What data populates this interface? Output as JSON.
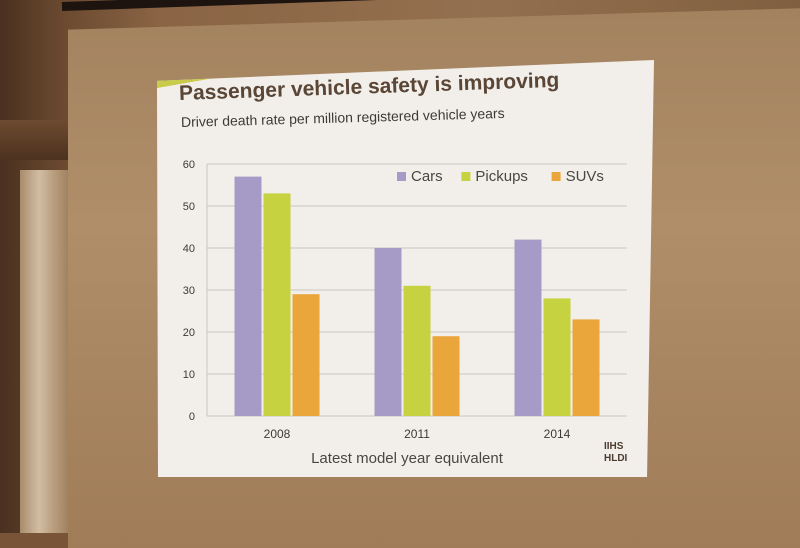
{
  "slide": {
    "title": "Passenger vehicle safety is improving",
    "subtitle": "Driver death rate per million registered vehicle years",
    "logo_text": "IIHS HLDI"
  },
  "colors": {
    "cars": "#a59bc6",
    "pickups": "#c6d23f",
    "suvs": "#eaa63a",
    "grid": "#c9c6c0",
    "axis_text": "#3c3a38"
  },
  "chart_data": {
    "type": "bar",
    "title": "Passenger vehicle safety is improving",
    "subtitle": "Driver death rate per million registered vehicle years",
    "categories": [
      "2008",
      "2011",
      "2014"
    ],
    "series": [
      {
        "name": "Cars",
        "values": [
          57,
          40,
          42
        ]
      },
      {
        "name": "Pickups",
        "values": [
          53,
          31,
          28
        ]
      },
      {
        "name": "SUVs",
        "values": [
          29,
          19,
          23
        ]
      }
    ],
    "xlabel": "Latest model year equivalent",
    "ylabel": "",
    "ylim": [
      0,
      60
    ],
    "yticks": [
      0,
      10,
      20,
      30,
      40,
      50,
      60
    ],
    "grid": true,
    "legend": "top-right"
  }
}
